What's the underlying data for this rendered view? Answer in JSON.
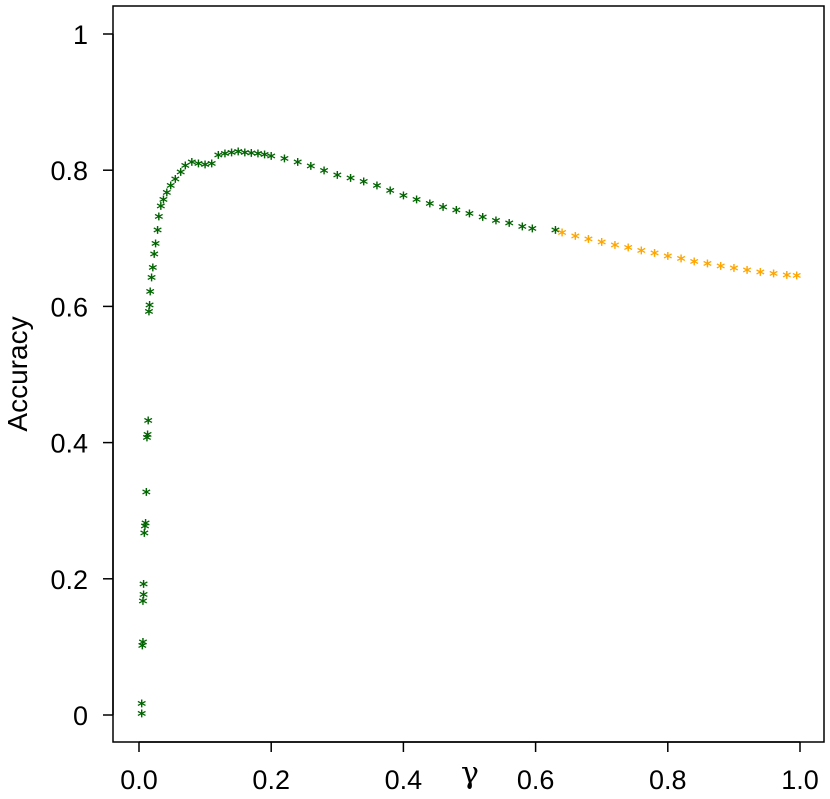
{
  "chart_data": {
    "type": "scatter",
    "title": "",
    "xlabel": "γ",
    "ylabel": "Accuracy",
    "xlim": [
      0,
      1
    ],
    "ylim": [
      0,
      1
    ],
    "x_ticks": [
      {
        "value": 0.0,
        "label": "0.0"
      },
      {
        "value": 0.2,
        "label": "0.2"
      },
      {
        "value": 0.4,
        "label": "0.4"
      },
      {
        "value": 0.6,
        "label": "0.6"
      },
      {
        "value": 0.8,
        "label": "0.8"
      },
      {
        "value": 1.0,
        "label": "1.0"
      }
    ],
    "y_ticks": [
      {
        "value": 0.0,
        "label": "0"
      },
      {
        "value": 0.2,
        "label": "0.2"
      },
      {
        "value": 0.4,
        "label": "0.4"
      },
      {
        "value": 0.6,
        "label": "0.6"
      },
      {
        "value": 0.8,
        "label": "0.8"
      },
      {
        "value": 1.0,
        "label": "1"
      }
    ],
    "grid": false,
    "marker": "*",
    "series": [
      {
        "color": "#006400",
        "points": [
          [
            0.004,
            0.0
          ],
          [
            0.004,
            0.015
          ],
          [
            0.005,
            0.1
          ],
          [
            0.006,
            0.105
          ],
          [
            0.006,
            0.165
          ],
          [
            0.007,
            0.175
          ],
          [
            0.007,
            0.19
          ],
          [
            0.008,
            0.265
          ],
          [
            0.009,
            0.275
          ],
          [
            0.01,
            0.28
          ],
          [
            0.011,
            0.325
          ],
          [
            0.012,
            0.405
          ],
          [
            0.013,
            0.41
          ],
          [
            0.014,
            0.43
          ],
          [
            0.015,
            0.59
          ],
          [
            0.016,
            0.6
          ],
          [
            0.017,
            0.62
          ],
          [
            0.019,
            0.64
          ],
          [
            0.021,
            0.655
          ],
          [
            0.023,
            0.675
          ],
          [
            0.025,
            0.69
          ],
          [
            0.028,
            0.71
          ],
          [
            0.03,
            0.73
          ],
          [
            0.033,
            0.745
          ],
          [
            0.037,
            0.755
          ],
          [
            0.042,
            0.765
          ],
          [
            0.048,
            0.775
          ],
          [
            0.055,
            0.785
          ],
          [
            0.063,
            0.795
          ],
          [
            0.07,
            0.805
          ],
          [
            0.08,
            0.81
          ],
          [
            0.09,
            0.808
          ],
          [
            0.1,
            0.806
          ],
          [
            0.11,
            0.808
          ],
          [
            0.12,
            0.82
          ],
          [
            0.13,
            0.822
          ],
          [
            0.14,
            0.824
          ],
          [
            0.15,
            0.825
          ],
          [
            0.16,
            0.824
          ],
          [
            0.17,
            0.823
          ],
          [
            0.18,
            0.822
          ],
          [
            0.19,
            0.821
          ],
          [
            0.2,
            0.819
          ],
          [
            0.22,
            0.815
          ],
          [
            0.24,
            0.81
          ],
          [
            0.26,
            0.804
          ],
          [
            0.28,
            0.797
          ],
          [
            0.3,
            0.791
          ],
          [
            0.32,
            0.786
          ],
          [
            0.34,
            0.781
          ],
          [
            0.36,
            0.775
          ],
          [
            0.38,
            0.768
          ],
          [
            0.4,
            0.761
          ],
          [
            0.42,
            0.755
          ],
          [
            0.44,
            0.749
          ],
          [
            0.46,
            0.744
          ],
          [
            0.48,
            0.739
          ],
          [
            0.5,
            0.734
          ],
          [
            0.52,
            0.729
          ],
          [
            0.54,
            0.724
          ],
          [
            0.56,
            0.72
          ],
          [
            0.58,
            0.715
          ],
          [
            0.595,
            0.712
          ],
          [
            0.63,
            0.71
          ]
        ]
      },
      {
        "color": "#FFA500",
        "points": [
          [
            0.64,
            0.706
          ],
          [
            0.66,
            0.701
          ],
          [
            0.68,
            0.697
          ],
          [
            0.7,
            0.692
          ],
          [
            0.72,
            0.688
          ],
          [
            0.74,
            0.684
          ],
          [
            0.76,
            0.68
          ],
          [
            0.78,
            0.676
          ],
          [
            0.8,
            0.672
          ],
          [
            0.82,
            0.668
          ],
          [
            0.84,
            0.664
          ],
          [
            0.86,
            0.661
          ],
          [
            0.88,
            0.657
          ],
          [
            0.9,
            0.654
          ],
          [
            0.92,
            0.651
          ],
          [
            0.94,
            0.648
          ],
          [
            0.96,
            0.646
          ],
          [
            0.98,
            0.644
          ],
          [
            0.995,
            0.643
          ]
        ]
      }
    ]
  }
}
